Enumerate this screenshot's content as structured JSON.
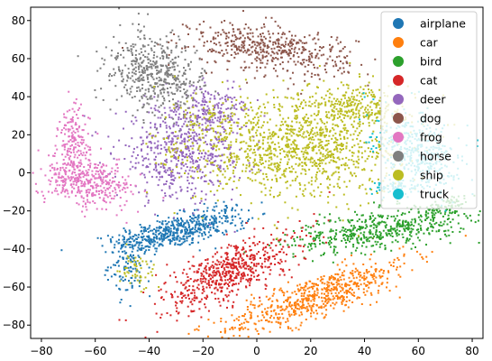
{
  "chart_data": {
    "type": "scatter",
    "title": "",
    "xlabel": "",
    "ylabel": "",
    "xlim": [
      -84,
      84
    ],
    "ylim": [
      -87,
      87
    ],
    "xticks": [
      -80,
      -60,
      -40,
      -20,
      0,
      20,
      40,
      60,
      80
    ],
    "yticks": [
      -80,
      -60,
      -40,
      -20,
      0,
      20,
      40,
      60,
      80
    ],
    "grid": false,
    "legend_position": "top-right",
    "series": [
      {
        "name": "airplane",
        "color": "#1f77b4",
        "clusters": [
          {
            "cx": -33,
            "cy": -32,
            "sx": 10,
            "sy": 4,
            "rot": 15,
            "n": 420
          },
          {
            "cx": -47,
            "cy": -48,
            "sx": 4,
            "sy": 8,
            "rot": 0,
            "n": 120
          },
          {
            "cx": -15,
            "cy": -24,
            "sx": 6,
            "sy": 4,
            "rot": 10,
            "n": 120
          }
        ]
      },
      {
        "name": "car",
        "color": "#ff7f0e",
        "clusters": [
          {
            "cx": 22,
            "cy": -65,
            "sx": 20,
            "sy": 5,
            "rot": 28,
            "n": 650
          }
        ]
      },
      {
        "name": "bird",
        "color": "#2ca02c",
        "clusters": [
          {
            "cx": 45,
            "cy": -30,
            "sx": 17,
            "sy": 5,
            "rot": 12,
            "n": 520
          },
          {
            "cx": 70,
            "cy": -18,
            "sx": 5,
            "sy": 3,
            "rot": 25,
            "n": 80
          }
        ]
      },
      {
        "name": "cat",
        "color": "#d62728",
        "clusters": [
          {
            "cx": -10,
            "cy": -52,
            "sx": 15,
            "sy": 6,
            "rot": 35,
            "n": 600
          }
        ]
      },
      {
        "name": "deer",
        "color": "#9467bd",
        "clusters": [
          {
            "cx": -28,
            "cy": 10,
            "sx": 12,
            "sy": 12,
            "rot": 0,
            "n": 550
          },
          {
            "cx": -18,
            "cy": 33,
            "sx": 8,
            "sy": 6,
            "rot": 0,
            "n": 180
          }
        ]
      },
      {
        "name": "dog",
        "color": "#8c564b",
        "clusters": [
          {
            "cx": 5,
            "cy": 65,
            "sx": 15,
            "sy": 6,
            "rot": -10,
            "n": 500
          }
        ]
      },
      {
        "name": "frog",
        "color": "#e377c2",
        "clusters": [
          {
            "cx": -68,
            "cy": 15,
            "sx": 3,
            "sy": 10,
            "rot": 0,
            "n": 180
          },
          {
            "cx": -63,
            "cy": -5,
            "sx": 9,
            "sy": 6,
            "rot": -20,
            "n": 380
          }
        ]
      },
      {
        "name": "horse",
        "color": "#7f7f7f",
        "clusters": [
          {
            "cx": -38,
            "cy": 52,
            "sx": 8,
            "sy": 11,
            "rot": 30,
            "n": 500
          }
        ]
      },
      {
        "name": "ship",
        "color": "#bcbd22",
        "clusters": [
          {
            "cx": 20,
            "cy": 15,
            "sx": 18,
            "sy": 14,
            "rot": 0,
            "n": 1000
          },
          {
            "cx": -10,
            "cy": 15,
            "sx": 14,
            "sy": 14,
            "rot": 0,
            "n": 260
          },
          {
            "cx": 38,
            "cy": 35,
            "sx": 8,
            "sy": 6,
            "rot": 0,
            "n": 200
          },
          {
            "cx": -45,
            "cy": -52,
            "sx": 4,
            "sy": 5,
            "rot": 0,
            "n": 50
          }
        ]
      },
      {
        "name": "truck",
        "color": "#17becf",
        "clusters": [
          {
            "cx": 60,
            "cy": 10,
            "sx": 7,
            "sy": 11,
            "rot": 20,
            "n": 420
          },
          {
            "cx": 50,
            "cy": -8,
            "sx": 4,
            "sy": 2,
            "rot": 0,
            "n": 60
          }
        ]
      }
    ]
  }
}
